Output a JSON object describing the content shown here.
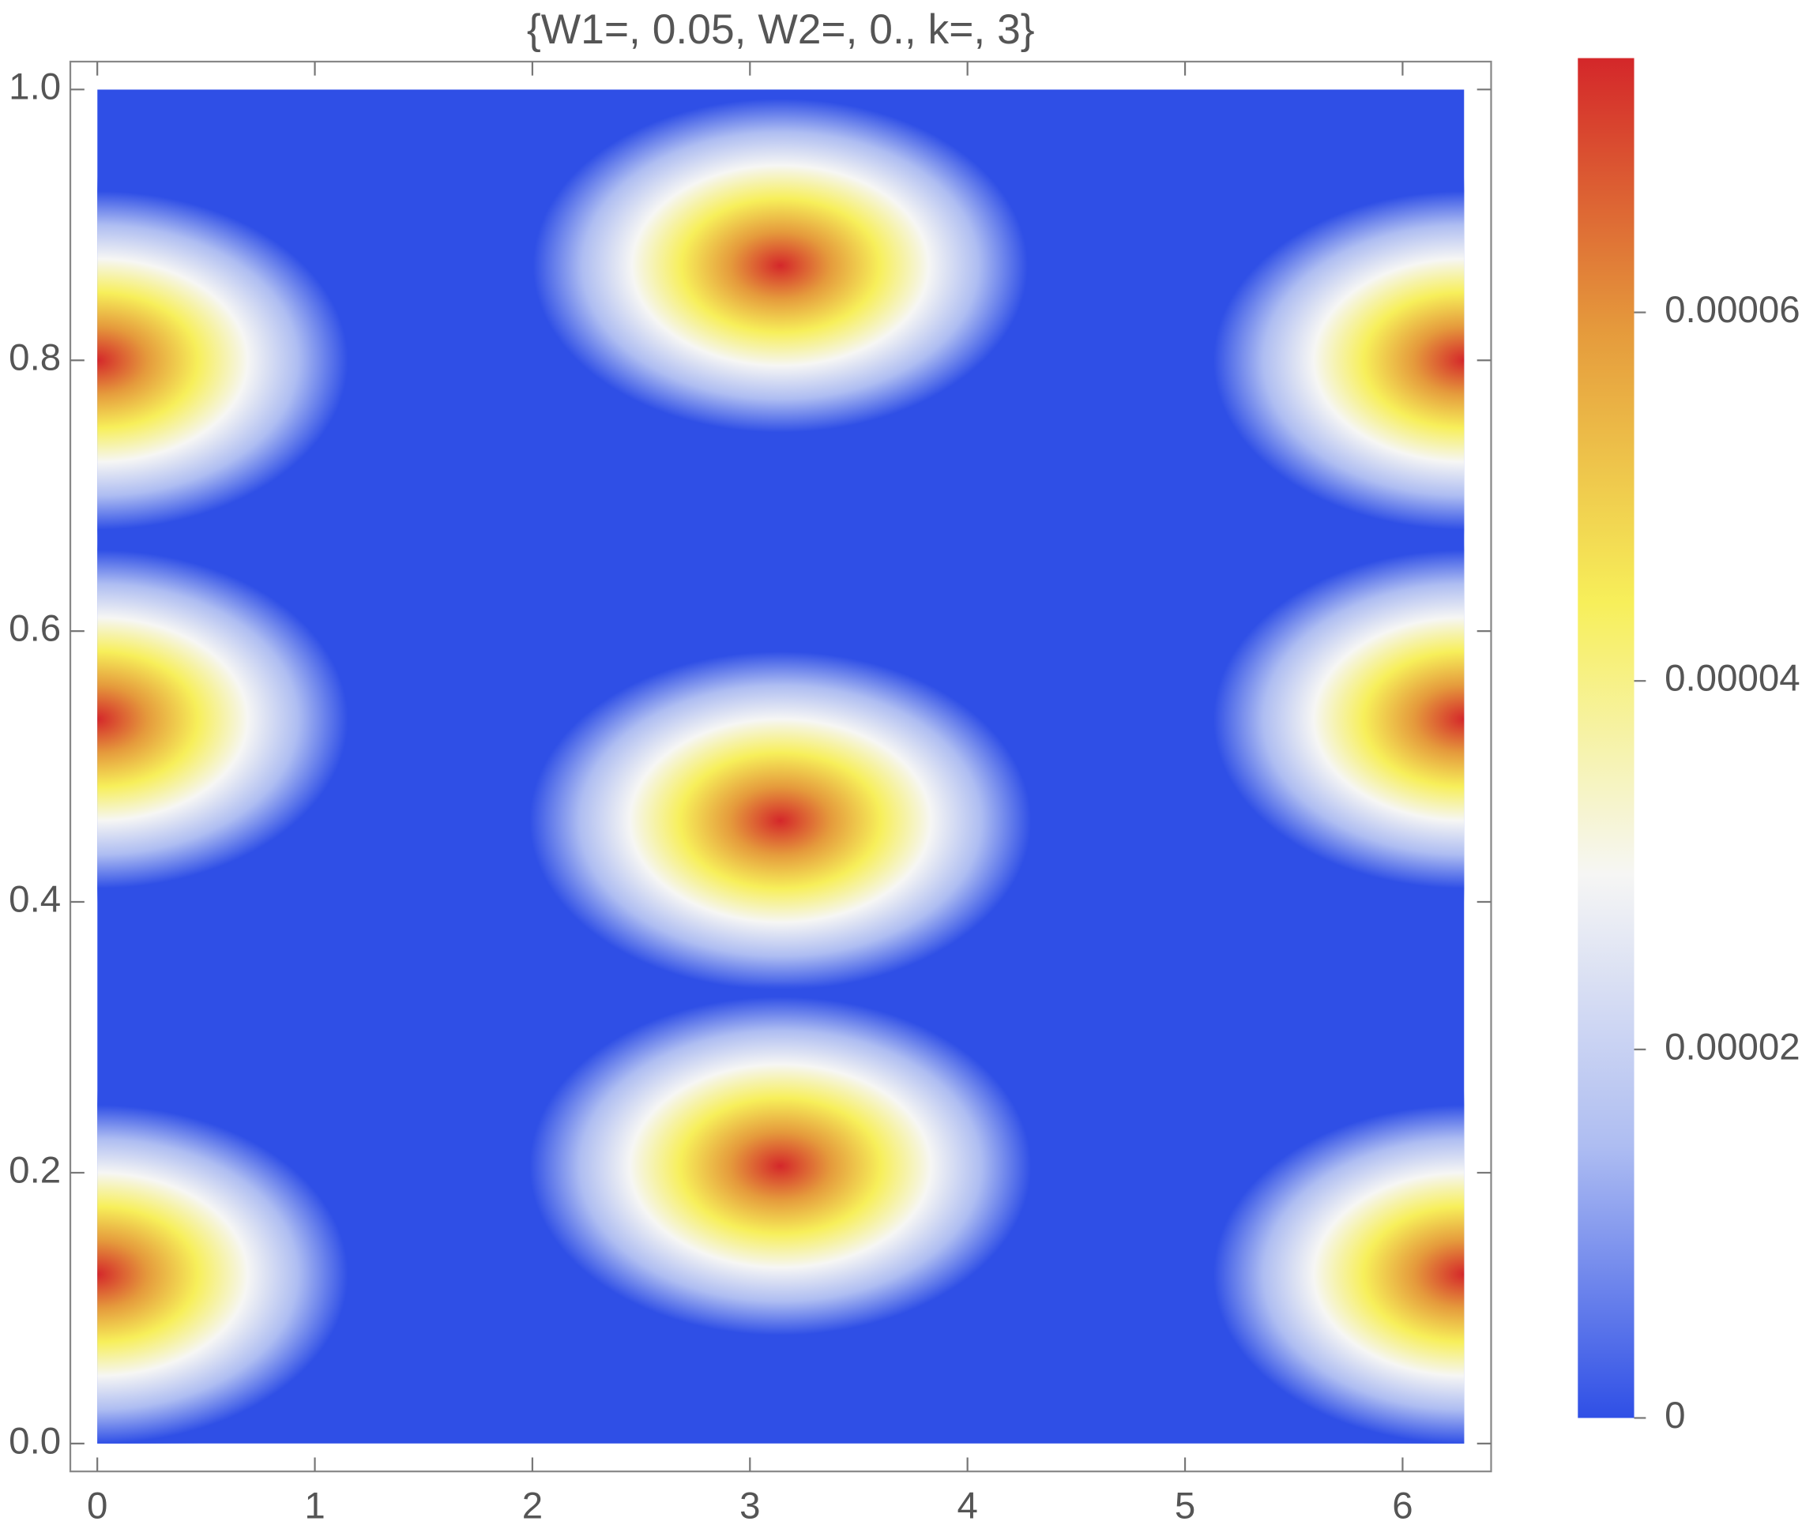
{
  "chart_data": {
    "type": "density",
    "title": "{W1=, 0.05, W2=, 0., k=, 3}",
    "xlim": [
      0,
      6.283
    ],
    "ylim": [
      0,
      1
    ],
    "xticks": [
      0,
      1,
      2,
      3,
      4,
      5,
      6
    ],
    "yticks": [
      {
        "value": 0,
        "label": "0.0"
      },
      {
        "value": 0.2,
        "label": "0.2"
      },
      {
        "value": 0.4,
        "label": "0.4"
      },
      {
        "value": 0.6,
        "label": "0.6"
      },
      {
        "value": 0.8,
        "label": "0.8"
      },
      {
        "value": 1,
        "label": "1.0"
      }
    ],
    "zlim": [
      0,
      7.38e-05
    ],
    "zticks": [
      0,
      {
        "value": 2e-05,
        "label": "0.00002"
      },
      {
        "value": 4e-05,
        "label": "0.00004"
      },
      {
        "value": 6e-05,
        "label": "0.00006"
      }
    ],
    "colorscale": [
      "#2f4fe6",
      "#aebdf2",
      "#f6f6f4",
      "#f7ef5a",
      "#e59a3c",
      "#d4272a"
    ],
    "peaks": [
      {
        "x": 3.14,
        "y": 0.87,
        "value": 7.2e-05
      },
      {
        "x": 3.14,
        "y": 0.46,
        "value": 7.3e-05
      },
      {
        "x": 3.14,
        "y": 0.205,
        "value": 7.3e-05
      },
      {
        "x": 0,
        "y": 0.8,
        "value": 7.3e-05
      },
      {
        "x": 6.283,
        "y": 0.8,
        "value": 7.3e-05
      },
      {
        "x": 0,
        "y": 0.535,
        "value": 7.3e-05
      },
      {
        "x": 6.283,
        "y": 0.535,
        "value": 7.3e-05
      },
      {
        "x": 0,
        "y": 0.125,
        "value": 7.3e-05
      },
      {
        "x": 6.283,
        "y": 0.125,
        "value": 7.3e-05
      }
    ]
  }
}
